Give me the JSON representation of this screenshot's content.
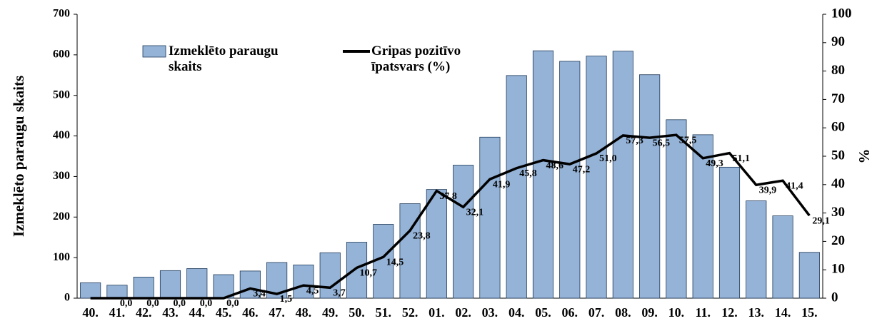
{
  "chart_data": {
    "type": "bar-line",
    "categories": [
      "40.",
      "41.",
      "42.",
      "43.",
      "44.",
      "45.",
      "46.",
      "47.",
      "48.",
      "49.",
      "50.",
      "51.",
      "52.",
      "01.",
      "02.",
      "03.",
      "04.",
      "05.",
      "06.",
      "07.",
      "08.",
      "09.",
      "10.",
      "11.",
      "12.",
      "13.",
      "14.",
      "15."
    ],
    "y_label": "Izmeklēto paraugu skaits",
    "y2_label": "%",
    "ylim": [
      0,
      700
    ],
    "yticks": [
      0,
      100,
      200,
      300,
      400,
      500,
      600,
      700
    ],
    "y2lim": [
      0,
      100
    ],
    "y2ticks": [
      0,
      10,
      20,
      30,
      40,
      50,
      60,
      70,
      80,
      90,
      100
    ],
    "series": [
      {
        "name": "Izmeklēto paraugu skaits",
        "kind": "bar",
        "color": "#95b3d7",
        "values": [
          38,
          32,
          52,
          68,
          73,
          58,
          67,
          88,
          82,
          112,
          138,
          182,
          233,
          268,
          328,
          397,
          549,
          610,
          584,
          597,
          609,
          551,
          440,
          403,
          323,
          240,
          203,
          113
        ]
      },
      {
        "name": "Gripas pozitīvo īpatsvars (%)",
        "kind": "line",
        "color": "#000000",
        "axis": "y2",
        "values": [
          0,
          0,
          0,
          0,
          0,
          0,
          3.4,
          1.5,
          4.5,
          3.7,
          10.7,
          14.5,
          23.8,
          37.8,
          32.1,
          41.9,
          45.8,
          48.6,
          47.2,
          51.0,
          57.3,
          56.5,
          57.5,
          49.3,
          51.1,
          39.9,
          41.4,
          29.1
        ],
        "value_labels": [
          null,
          "0,0",
          "0,0",
          "0,0",
          "0,0",
          "0,0",
          "3,4",
          "1,5",
          "4,5",
          "3,7",
          "10,7",
          "14,5",
          "23,8",
          "37,8",
          "32,1",
          "41,9",
          "45,8",
          "48,6",
          "47,2",
          "51,0",
          "57,3",
          "56,5",
          "57,5",
          "49,3",
          "51,1",
          "39,9",
          "41,4",
          "29,1"
        ]
      }
    ]
  }
}
